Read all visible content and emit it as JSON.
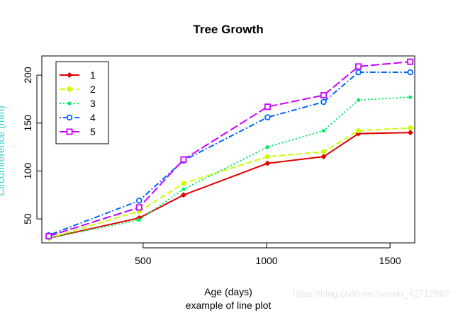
{
  "chart_data": {
    "type": "line",
    "title": "Tree Growth",
    "xlabel": "Age (days)",
    "subtitle": "example of line plot",
    "ylabel": "Circumference (mm)",
    "xlim": [
      90,
      1600
    ],
    "ylim": [
      25,
      220
    ],
    "xticks": [
      500,
      1000,
      1500
    ],
    "yticks": [
      50,
      100,
      150,
      200
    ],
    "x": [
      118,
      484,
      664,
      1004,
      1231,
      1372,
      1582
    ],
    "legend_position": "top-left",
    "series": [
      {
        "name": "1",
        "values": [
          30,
          51,
          75,
          108,
          115,
          139,
          140
        ],
        "color": "#e00000",
        "line": "solid",
        "marker": "diamond"
      },
      {
        "name": "2",
        "values": [
          30,
          58,
          87,
          115,
          120,
          142,
          145
        ],
        "color": "#ccff00",
        "line": "dashed",
        "marker": "circle-filled"
      },
      {
        "name": "3",
        "values": [
          30,
          49,
          81,
          125,
          142,
          174,
          177
        ],
        "color": "#00ee66",
        "line": "dotted",
        "marker": "circle-small"
      },
      {
        "name": "4",
        "values": [
          33,
          69,
          111,
          156,
          172,
          203,
          203
        ],
        "color": "#0066ff",
        "line": "dotdash",
        "marker": "circle-open"
      },
      {
        "name": "5",
        "values": [
          32,
          62,
          112,
          167,
          179,
          209,
          214
        ],
        "color": "#cc00ff",
        "line": "longdash",
        "marker": "square-open"
      }
    ]
  },
  "watermark": "https://blog.csdn.net/weixin_42712867"
}
